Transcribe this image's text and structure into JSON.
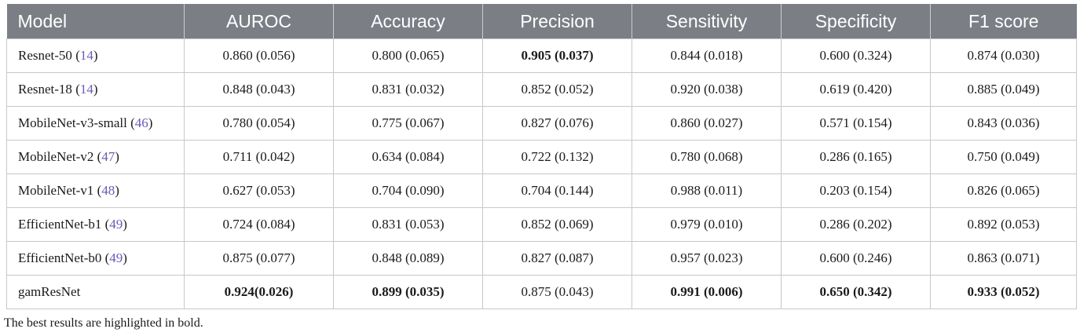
{
  "table": {
    "headers": [
      "Model",
      "AUROC",
      "Accuracy",
      "Precision",
      "Sensitivity",
      "Specificity",
      "F1 score"
    ],
    "rows": [
      {
        "model": "Resnet-50",
        "ref": "14",
        "values": [
          "0.860 (0.056)",
          "0.800 (0.065)",
          "0.905 (0.037)",
          "0.844 (0.018)",
          "0.600 (0.324)",
          "0.874 (0.030)"
        ],
        "bold": [
          false,
          false,
          true,
          false,
          false,
          false
        ]
      },
      {
        "model": "Resnet-18",
        "ref": "14",
        "values": [
          "0.848 (0.043)",
          "0.831 (0.032)",
          "0.852 (0.052)",
          "0.920 (0.038)",
          "0.619 (0.420)",
          "0.885 (0.049)"
        ],
        "bold": [
          false,
          false,
          false,
          false,
          false,
          false
        ]
      },
      {
        "model": "MobileNet-v3-small",
        "ref": "46",
        "values": [
          "0.780 (0.054)",
          "0.775 (0.067)",
          "0.827 (0.076)",
          "0.860 (0.027)",
          "0.571 (0.154)",
          "0.843 (0.036)"
        ],
        "bold": [
          false,
          false,
          false,
          false,
          false,
          false
        ]
      },
      {
        "model": "MobileNet-v2",
        "ref": "47",
        "values": [
          "0.711 (0.042)",
          "0.634 (0.084)",
          "0.722 (0.132)",
          "0.780 (0.068)",
          "0.286 (0.165)",
          "0.750 (0.049)"
        ],
        "bold": [
          false,
          false,
          false,
          false,
          false,
          false
        ]
      },
      {
        "model": "MobileNet-v1",
        "ref": "48",
        "values": [
          "0.627 (0.053)",
          "0.704 (0.090)",
          "0.704 (0.144)",
          "0.988 (0.011)",
          "0.203 (0.154)",
          "0.826 (0.065)"
        ],
        "bold": [
          false,
          false,
          false,
          false,
          false,
          false
        ]
      },
      {
        "model": "EfficientNet-b1",
        "ref": "49",
        "values": [
          "0.724 (0.084)",
          "0.831 (0.053)",
          "0.852 (0.069)",
          "0.979 (0.010)",
          "0.286 (0.202)",
          "0.892 (0.053)"
        ],
        "bold": [
          false,
          false,
          false,
          false,
          false,
          false
        ]
      },
      {
        "model": "EfficientNet-b0",
        "ref": "49",
        "values": [
          "0.875 (0.077)",
          "0.848 (0.089)",
          "0.827 (0.087)",
          "0.957 (0.023)",
          "0.600 (0.246)",
          "0.863 (0.071)"
        ],
        "bold": [
          false,
          false,
          false,
          false,
          false,
          false
        ]
      },
      {
        "model": "gamResNet",
        "ref": "",
        "values": [
          "0.924(0.026)",
          "0.899 (0.035)",
          "0.875 (0.043)",
          "0.991 (0.006)",
          "0.650 (0.342)",
          "0.933 (0.052)"
        ],
        "bold": [
          true,
          true,
          false,
          true,
          true,
          true
        ]
      }
    ]
  },
  "footnote": "The best results are highlighted in bold.",
  "colors": {
    "header_bg": "#7b7f85",
    "header_text": "#ffffff",
    "ref_link": "#6b5bb5"
  }
}
